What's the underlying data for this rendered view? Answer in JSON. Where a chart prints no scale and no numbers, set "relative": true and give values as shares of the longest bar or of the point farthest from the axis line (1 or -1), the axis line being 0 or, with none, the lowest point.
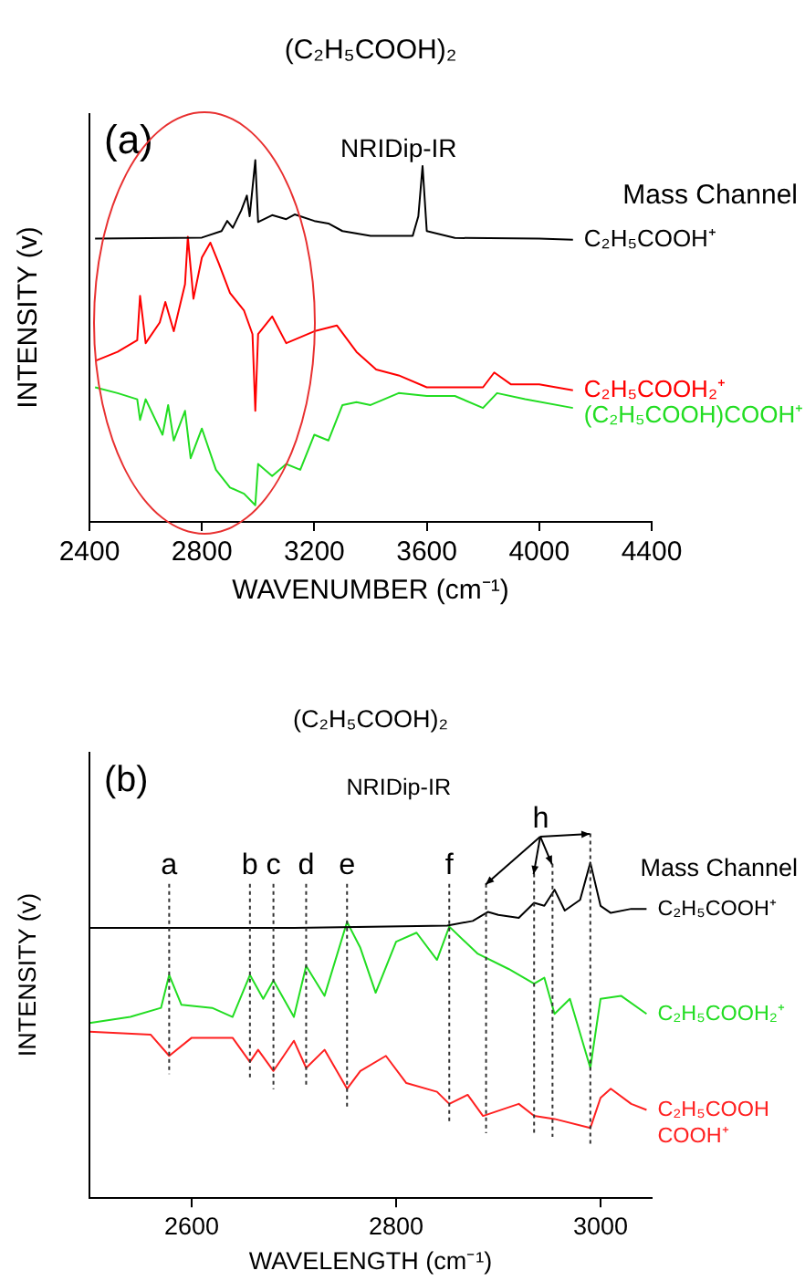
{
  "chart_data": [
    {
      "type": "line",
      "title": "(C₂H₅COOH)₂",
      "xlabel": "WAVENUMBER (cm⁻¹)",
      "ylabel": "INTENSITY (v)",
      "legend_title": "Mass Channel",
      "annotations": [
        "(a)",
        "NRIDip-IR"
      ],
      "relative": true,
      "xlim": [
        2400,
        4400
      ],
      "xticks": [
        2400,
        2800,
        3200,
        3600,
        4000,
        4400
      ],
      "grid": false,
      "legend": false,
      "marker": "none",
      "line_style": "solid",
      "series": [
        {
          "name": "C₂H₅COOH⁺",
          "color": "#000000",
          "x": [
            2420,
            2800,
            2870,
            2890,
            2910,
            2940,
            2960,
            2970,
            2990,
            3000,
            3050,
            3100,
            3130,
            3200,
            3250,
            3300,
            3400,
            3550,
            3570,
            3585,
            3600,
            3700,
            4000,
            4120
          ],
          "values": [
            0.783,
            0.786,
            0.804,
            0.832,
            0.813,
            0.861,
            0.902,
            0.845,
            1.0,
            0.829,
            0.848,
            0.837,
            0.85,
            0.832,
            0.825,
            0.804,
            0.791,
            0.791,
            0.845,
            0.984,
            0.804,
            0.785,
            0.783,
            0.78
          ]
        },
        {
          "name": "C₂H₅COOH₂⁺",
          "color": "#ff0000",
          "x": [
            2420,
            2500,
            2570,
            2580,
            2600,
            2650,
            2670,
            2700,
            2740,
            2750,
            2770,
            2800,
            2830,
            2860,
            2900,
            2950,
            2980,
            2990,
            3000,
            3050,
            3100,
            3200,
            3280,
            3350,
            3420,
            3500,
            3600,
            3700,
            3800,
            3840,
            3900,
            4000,
            4120
          ],
          "values": [
            0.445,
            0.47,
            0.502,
            0.625,
            0.494,
            0.551,
            0.608,
            0.527,
            0.657,
            0.788,
            0.617,
            0.731,
            0.772,
            0.715,
            0.633,
            0.584,
            0.519,
            0.307,
            0.519,
            0.568,
            0.494,
            0.527,
            0.543,
            0.47,
            0.421,
            0.405,
            0.372,
            0.372,
            0.372,
            0.413,
            0.38,
            0.38,
            0.364
          ]
        },
        {
          "name": "(C₂H₅COOH)COOH⁺",
          "color": "#22dd22",
          "x": [
            2420,
            2500,
            2570,
            2580,
            2600,
            2660,
            2680,
            2700,
            2740,
            2760,
            2800,
            2850,
            2900,
            2950,
            2990,
            3000,
            3050,
            3100,
            3150,
            3200,
            3250,
            3300,
            3350,
            3400,
            3500,
            3600,
            3700,
            3800,
            3850,
            3950,
            4120
          ],
          "values": [
            0.372,
            0.356,
            0.339,
            0.282,
            0.339,
            0.241,
            0.323,
            0.225,
            0.307,
            0.176,
            0.258,
            0.144,
            0.095,
            0.078,
            0.046,
            0.16,
            0.127,
            0.16,
            0.144,
            0.241,
            0.225,
            0.323,
            0.331,
            0.323,
            0.356,
            0.348,
            0.348,
            0.315,
            0.356,
            0.339,
            0.315
          ]
        }
      ]
    },
    {
      "type": "line",
      "title": "(C₂H₅COOH)₂",
      "xlabel": "WAVELENGTH (cm⁻¹)",
      "ylabel": "INTENSITY (v)",
      "legend_title": "Mass Channel",
      "annotations": [
        "(b)",
        "NRIDip-IR",
        "h"
      ],
      "relative": true,
      "xlim": [
        2500,
        3050
      ],
      "xticks": [
        2600,
        2800,
        3000
      ],
      "grid": false,
      "legend": false,
      "marker": "none",
      "line_style": "solid",
      "ref_lines": [
        {
          "axis": "x",
          "value": 2578,
          "label": "a",
          "color": "#333333",
          "line_style": "dotted"
        },
        {
          "axis": "x",
          "value": 2657,
          "label": "b",
          "color": "#333333",
          "line_style": "dotted"
        },
        {
          "axis": "x",
          "value": 2680,
          "label": "c",
          "color": "#333333",
          "line_style": "dotted"
        },
        {
          "axis": "x",
          "value": 2712,
          "label": "d",
          "color": "#333333",
          "line_style": "dotted"
        },
        {
          "axis": "x",
          "value": 2752,
          "label": "e",
          "color": "#333333",
          "line_style": "dotted"
        },
        {
          "axis": "x",
          "value": 2852,
          "label": "f",
          "color": "#333333",
          "line_style": "dotted"
        },
        {
          "axis": "x",
          "value": 2888,
          "label": null,
          "color": "#333333",
          "line_style": "dotted"
        },
        {
          "axis": "x",
          "value": 2935,
          "label": null,
          "color": "#333333",
          "line_style": "dotted"
        },
        {
          "axis": "x",
          "value": 2953,
          "label": null,
          "color": "#333333",
          "line_style": "dotted"
        },
        {
          "axis": "x",
          "value": 2990,
          "label": null,
          "color": "#333333",
          "line_style": "dotted"
        }
      ],
      "series": [
        {
          "name": "C₂H₅COOH⁺",
          "color": "#000000",
          "x": [
            2500,
            2700,
            2850,
            2875,
            2890,
            2900,
            2920,
            2935,
            2945,
            2955,
            2965,
            2980,
            2990,
            3000,
            3010,
            3030,
            3045
          ],
          "values": [
            0.805,
            0.805,
            0.812,
            0.826,
            0.853,
            0.844,
            0.835,
            0.88,
            0.871,
            0.919,
            0.857,
            0.889,
            1.0,
            0.871,
            0.85,
            0.862,
            0.862
          ]
        },
        {
          "name": "C₂H₅COOH₂⁺",
          "color": "#22dd22",
          "x": [
            2500,
            2540,
            2570,
            2578,
            2590,
            2620,
            2640,
            2657,
            2670,
            2680,
            2700,
            2712,
            2730,
            2752,
            2765,
            2780,
            2800,
            2820,
            2840,
            2852,
            2880,
            2910,
            2935,
            2945,
            2955,
            2970,
            2990,
            3000,
            3020,
            3045
          ],
          "values": [
            0.522,
            0.54,
            0.567,
            0.665,
            0.576,
            0.567,
            0.54,
            0.665,
            0.594,
            0.648,
            0.54,
            0.692,
            0.603,
            0.823,
            0.746,
            0.612,
            0.764,
            0.791,
            0.71,
            0.809,
            0.728,
            0.683,
            0.639,
            0.657,
            0.549,
            0.594,
            0.388,
            0.594,
            0.603,
            0.549
          ]
        },
        {
          "name": "C₂H₅COOH COOH⁺",
          "color": "#ff2020",
          "x": [
            2500,
            2560,
            2578,
            2600,
            2640,
            2657,
            2665,
            2680,
            2700,
            2712,
            2730,
            2752,
            2765,
            2790,
            2810,
            2840,
            2852,
            2870,
            2885,
            2920,
            2935,
            2955,
            2990,
            3000,
            3010,
            3030,
            3045
          ],
          "values": [
            0.496,
            0.487,
            0.424,
            0.478,
            0.478,
            0.406,
            0.442,
            0.379,
            0.469,
            0.388,
            0.442,
            0.326,
            0.379,
            0.424,
            0.343,
            0.317,
            0.281,
            0.308,
            0.245,
            0.281,
            0.245,
            0.236,
            0.209,
            0.299,
            0.326,
            0.281,
            0.263
          ]
        }
      ]
    }
  ]
}
